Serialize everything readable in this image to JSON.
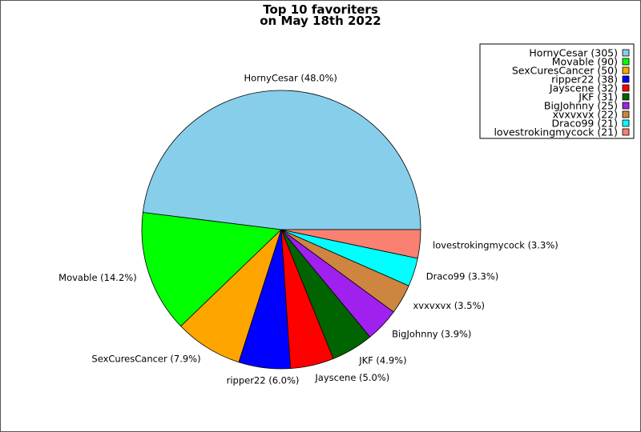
{
  "chart_data": {
    "type": "pie",
    "title_lines": [
      "Top 10 favoriters",
      "on May 18th 2022"
    ],
    "legend_position": "top-right",
    "slices": [
      {
        "name": "HornyCesar",
        "value": 305,
        "percent_label": "HornyCesar (48.0%)",
        "legend_label": "HornyCesar (305)",
        "color": "#87CEEB"
      },
      {
        "name": "Movable",
        "value": 90,
        "percent_label": "Movable (14.2%)",
        "legend_label": "Movable (90)",
        "color": "#00FF00"
      },
      {
        "name": "SexCuresCancer",
        "value": 50,
        "percent_label": "SexCuresCancer (7.9%)",
        "legend_label": "SexCuresCancer (50)",
        "color": "#FFA500"
      },
      {
        "name": "ripper22",
        "value": 38,
        "percent_label": "ripper22 (6.0%)",
        "legend_label": "ripper22 (38)",
        "color": "#0000FF"
      },
      {
        "name": "Jayscene",
        "value": 32,
        "percent_label": "Jayscene (5.0%)",
        "legend_label": "Jayscene (32)",
        "color": "#FF0000"
      },
      {
        "name": "JKF",
        "value": 31,
        "percent_label": "JKF (4.9%)",
        "legend_label": "JKF (31)",
        "color": "#006400"
      },
      {
        "name": "BigJohnny",
        "value": 25,
        "percent_label": "BigJohnny (3.9%)",
        "legend_label": "BigJohnny (25)",
        "color": "#A020F0"
      },
      {
        "name": "xvxvxvx",
        "value": 22,
        "percent_label": "xvxvxvx (3.5%)",
        "legend_label": "xvxvxvx (22)",
        "color": "#CD853F"
      },
      {
        "name": "Draco99",
        "value": 21,
        "percent_label": "Draco99 (3.3%)",
        "legend_label": "Draco99 (21)",
        "color": "#00FFFF"
      },
      {
        "name": "lovestrokingmycock",
        "value": 21,
        "percent_label": "lovestrokingmycock (3.3%)",
        "legend_label": "lovestrokingmycock (21)",
        "color": "#FA8072"
      }
    ]
  }
}
